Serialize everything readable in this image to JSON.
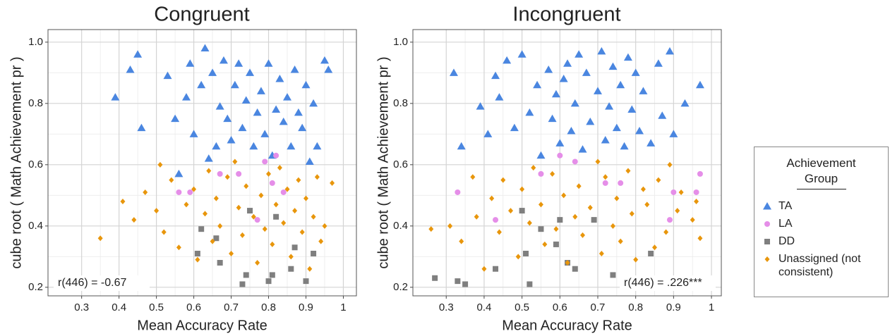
{
  "chart_data": [
    {
      "type": "scatter",
      "title": "Congruent",
      "x_label": "Mean Accuracy Rate",
      "y_label": "cube  root ( Math Achievement pr )",
      "annotation": "r(446) = -0.67",
      "annotation_corner": "bottom-left",
      "xlim": [
        0.21,
        1.035
      ],
      "ylim": [
        0.172,
        1.041
      ],
      "xticks": [
        0.3,
        0.4,
        0.5,
        0.6,
        0.7,
        0.8,
        0.9,
        1
      ],
      "yticks": [
        0.2,
        0.4,
        0.6,
        0.8,
        {
          "value": 1,
          "label": "1.0"
        }
      ],
      "grid": true,
      "series": [
        {
          "name": "TA",
          "color": "#4a86e0",
          "marker": "triangle",
          "x": [
            0.39,
            0.43,
            0.45,
            0.46,
            0.53,
            0.55,
            0.56,
            0.58,
            0.59,
            0.6,
            0.62,
            0.63,
            0.64,
            0.65,
            0.66,
            0.67,
            0.68,
            0.69,
            0.7,
            0.71,
            0.72,
            0.73,
            0.74,
            0.75,
            0.76,
            0.77,
            0.78,
            0.79,
            0.8,
            0.81,
            0.82,
            0.83,
            0.84,
            0.85,
            0.86,
            0.87,
            0.88,
            0.89,
            0.9,
            0.91,
            0.92,
            0.93,
            0.95,
            0.96
          ],
          "values": [
            0.82,
            0.91,
            0.96,
            0.72,
            0.89,
            0.75,
            0.57,
            0.82,
            0.93,
            0.7,
            0.86,
            0.98,
            0.62,
            0.9,
            0.66,
            0.79,
            0.94,
            0.75,
            0.68,
            0.86,
            0.93,
            0.72,
            0.81,
            0.9,
            0.66,
            0.77,
            0.84,
            0.7,
            0.93,
            0.63,
            0.78,
            0.88,
            0.74,
            0.82,
            0.66,
            0.91,
            0.77,
            0.72,
            0.86,
            0.61,
            0.8,
            0.66,
            0.94,
            0.91
          ]
        },
        {
          "name": "LA",
          "color": "#e58ee8",
          "marker": "circle",
          "x": [
            0.56,
            0.59,
            0.67,
            0.72,
            0.77,
            0.79,
            0.81,
            0.82,
            0.84
          ],
          "values": [
            0.51,
            0.51,
            0.57,
            0.57,
            0.42,
            0.61,
            0.54,
            0.63,
            0.51
          ]
        },
        {
          "name": "DD",
          "color": "#7f7f7f",
          "marker": "square",
          "x": [
            0.61,
            0.62,
            0.66,
            0.67,
            0.73,
            0.74,
            0.75,
            0.8,
            0.81,
            0.82,
            0.86,
            0.87,
            0.9,
            0.92
          ],
          "values": [
            0.31,
            0.39,
            0.36,
            0.28,
            0.21,
            0.24,
            0.45,
            0.22,
            0.24,
            0.43,
            0.26,
            0.33,
            0.22,
            0.31
          ]
        },
        {
          "name": "Unassigned (not consistent)",
          "color": "#e8960c",
          "marker": "diamond",
          "x": [
            0.35,
            0.41,
            0.44,
            0.47,
            0.5,
            0.51,
            0.52,
            0.54,
            0.56,
            0.58,
            0.6,
            0.61,
            0.63,
            0.64,
            0.65,
            0.66,
            0.67,
            0.69,
            0.7,
            0.71,
            0.72,
            0.73,
            0.74,
            0.76,
            0.77,
            0.78,
            0.79,
            0.8,
            0.81,
            0.82,
            0.83,
            0.84,
            0.85,
            0.86,
            0.87,
            0.88,
            0.89,
            0.9,
            0.91,
            0.92,
            0.93,
            0.94,
            0.95,
            0.97
          ],
          "values": [
            0.36,
            0.48,
            0.42,
            0.51,
            0.45,
            0.6,
            0.38,
            0.55,
            0.33,
            0.47,
            0.52,
            0.29,
            0.44,
            0.58,
            0.35,
            0.49,
            0.4,
            0.56,
            0.31,
            0.61,
            0.46,
            0.37,
            0.53,
            0.43,
            0.28,
            0.5,
            0.39,
            0.57,
            0.34,
            0.47,
            0.59,
            0.41,
            0.52,
            0.3,
            0.45,
            0.55,
            0.38,
            0.49,
            0.26,
            0.43,
            0.56,
            0.35,
            0.4,
            0.54
          ]
        }
      ]
    },
    {
      "type": "scatter",
      "title": "Incongruent",
      "x_label": "Mean Accuracy Rate",
      "y_label": "cube  root ( Math Achievement pr )",
      "annotation": "r(446) = .226***",
      "annotation_corner": "bottom-right",
      "xlim": [
        0.212,
        1.026
      ],
      "ylim": [
        0.172,
        1.041
      ],
      "xticks": [
        0.3,
        0.4,
        0.5,
        0.6,
        0.7,
        0.8,
        0.9,
        1
      ],
      "yticks": [
        0.2,
        0.4,
        0.6,
        0.8,
        {
          "value": 1,
          "label": "1.0"
        }
      ],
      "grid": true,
      "series": [
        {
          "color": "#4a86e0",
          "marker": "triangle",
          "x": [
            0.32,
            0.34,
            0.39,
            0.41,
            0.43,
            0.44,
            0.46,
            0.48,
            0.5,
            0.52,
            0.54,
            0.55,
            0.57,
            0.58,
            0.59,
            0.6,
            0.61,
            0.62,
            0.63,
            0.64,
            0.65,
            0.66,
            0.67,
            0.68,
            0.7,
            0.71,
            0.72,
            0.73,
            0.74,
            0.75,
            0.76,
            0.77,
            0.78,
            0.79,
            0.8,
            0.81,
            0.82,
            0.84,
            0.86,
            0.87,
            0.89,
            0.9,
            0.93,
            0.97
          ],
          "values": [
            0.9,
            0.66,
            0.79,
            0.7,
            0.89,
            0.82,
            0.94,
            0.72,
            0.96,
            0.77,
            0.86,
            0.63,
            0.91,
            0.75,
            0.83,
            0.67,
            0.88,
            0.93,
            0.71,
            0.8,
            0.96,
            0.65,
            0.9,
            0.74,
            0.84,
            0.97,
            0.68,
            0.79,
            0.92,
            0.72,
            0.86,
            0.66,
            0.95,
            0.78,
            0.9,
            0.71,
            0.84,
            0.67,
            0.93,
            0.76,
            0.97,
            0.7,
            0.8,
            0.86
          ]
        },
        {
          "color": "#e58ee8",
          "marker": "circle",
          "x": [
            0.33,
            0.43,
            0.55,
            0.6,
            0.64,
            0.72,
            0.76,
            0.89,
            0.9,
            0.96,
            0.97
          ],
          "values": [
            0.51,
            0.42,
            0.57,
            0.63,
            0.61,
            0.54,
            0.54,
            0.42,
            0.51,
            0.51,
            0.57
          ]
        },
        {
          "color": "#7f7f7f",
          "marker": "square",
          "x": [
            0.27,
            0.33,
            0.35,
            0.43,
            0.5,
            0.51,
            0.52,
            0.55,
            0.59,
            0.6,
            0.62,
            0.64,
            0.69,
            0.74,
            0.84
          ],
          "values": [
            0.23,
            0.22,
            0.21,
            0.26,
            0.45,
            0.31,
            0.21,
            0.39,
            0.34,
            0.42,
            0.28,
            0.26,
            0.42,
            0.24,
            0.31
          ]
        },
        {
          "color": "#e8960c",
          "marker": "diamond",
          "x": [
            0.26,
            0.31,
            0.34,
            0.37,
            0.38,
            0.4,
            0.42,
            0.44,
            0.45,
            0.47,
            0.49,
            0.5,
            0.52,
            0.53,
            0.55,
            0.56,
            0.58,
            0.59,
            0.61,
            0.62,
            0.64,
            0.65,
            0.66,
            0.68,
            0.7,
            0.71,
            0.72,
            0.74,
            0.75,
            0.76,
            0.78,
            0.79,
            0.8,
            0.82,
            0.83,
            0.85,
            0.86,
            0.88,
            0.89,
            0.91,
            0.92,
            0.95,
            0.96,
            0.97
          ],
          "values": [
            0.39,
            0.4,
            0.35,
            0.56,
            0.43,
            0.26,
            0.49,
            0.38,
            0.55,
            0.45,
            0.3,
            0.52,
            0.41,
            0.59,
            0.47,
            0.34,
            0.57,
            0.39,
            0.5,
            0.28,
            0.43,
            0.53,
            0.37,
            0.46,
            0.61,
            0.31,
            0.56,
            0.4,
            0.49,
            0.35,
            0.58,
            0.44,
            0.29,
            0.52,
            0.47,
            0.33,
            0.55,
            0.38,
            0.6,
            0.45,
            0.51,
            0.42,
            0.48,
            0.36
          ]
        }
      ]
    }
  ],
  "legend": {
    "title": "Achievement Group"
  }
}
